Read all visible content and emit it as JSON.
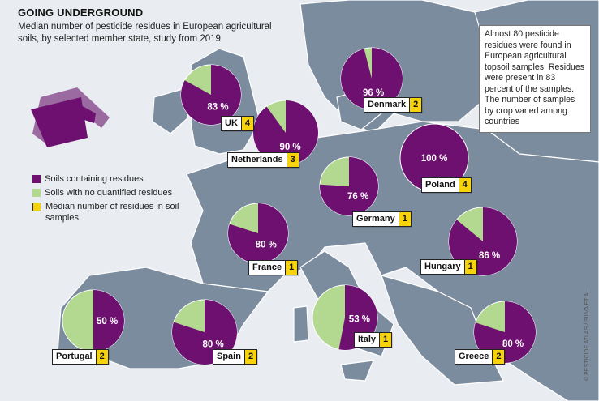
{
  "title": "GOING UNDERGROUND",
  "subtitle": "Median number of pesticide residues in European agricultural soils, by selected member state, study from 2019",
  "note": "Almost 80 pesticide residues were found in European agricultural topsoil samples. Residues were present in 83 percent of the samples. The number of samples by crop varied among countries",
  "legend": {
    "residues": "Soils containing residues",
    "no_residues": "Soils with no quantified residues",
    "median": "Median number of residues in soil samples"
  },
  "colors": {
    "residues": "#6d1070",
    "no_residues": "#b3d88f",
    "median_badge": "#f6d30c",
    "land": "#7c8c9f",
    "sea": "#e9ecf1"
  },
  "credit": "© PESTICIDE ATLAS / SILVA ET AL.",
  "chart_data": {
    "type": "pie",
    "series": [
      {
        "country": "UK",
        "residues_pct": 83,
        "label": "83 %",
        "median": "4"
      },
      {
        "country": "Netherlands",
        "residues_pct": 90,
        "label": "90 %",
        "median": "3"
      },
      {
        "country": "Denmark",
        "residues_pct": 96,
        "label": "96 %",
        "median": "2"
      },
      {
        "country": "Poland",
        "residues_pct": 100,
        "label": "100 %",
        "median": "4"
      },
      {
        "country": "Germany",
        "residues_pct": 76,
        "label": "76 %",
        "median": "1"
      },
      {
        "country": "France",
        "residues_pct": 80,
        "label": "80 %",
        "median": "1"
      },
      {
        "country": "Hungary",
        "residues_pct": 86,
        "label": "86 %",
        "median": "1"
      },
      {
        "country": "Portugal",
        "residues_pct": 50,
        "label": "50 %",
        "median": "2"
      },
      {
        "country": "Spain",
        "residues_pct": 80,
        "label": "80 %",
        "median": "2"
      },
      {
        "country": "Italy",
        "residues_pct": 53,
        "label": "53 %",
        "median": "1"
      },
      {
        "country": "Greece",
        "residues_pct": 80,
        "label": "80 %",
        "median": "2"
      }
    ]
  }
}
